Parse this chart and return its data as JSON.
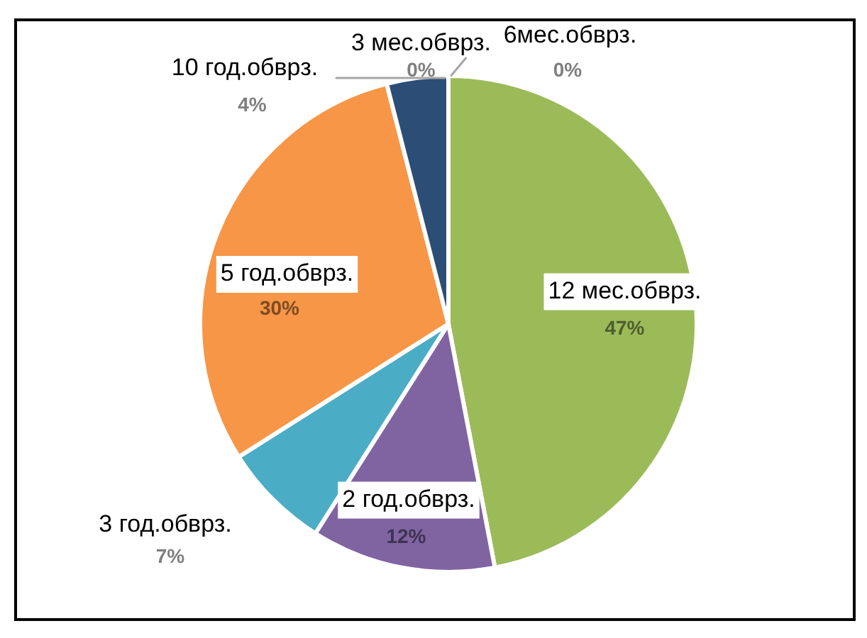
{
  "chart_data": {
    "type": "pie",
    "categories": [
      "3 мес.обврз.",
      "6мес.обврз.",
      "12 мес.обврз.",
      "2 год.обврз.",
      "3 год.обврз.",
      "5 год.обврз.",
      "10 год.обврз."
    ],
    "values": [
      0,
      0,
      47,
      12,
      7,
      30,
      4
    ],
    "value_labels": [
      "0%",
      "0%",
      "47%",
      "12%",
      "7%",
      "30%",
      "4%"
    ],
    "colors": [
      "#4f81bd",
      "#c0504d",
      "#9bbb59",
      "#8064a2",
      "#4bacc6",
      "#f79646",
      "#2c4d75"
    ]
  }
}
